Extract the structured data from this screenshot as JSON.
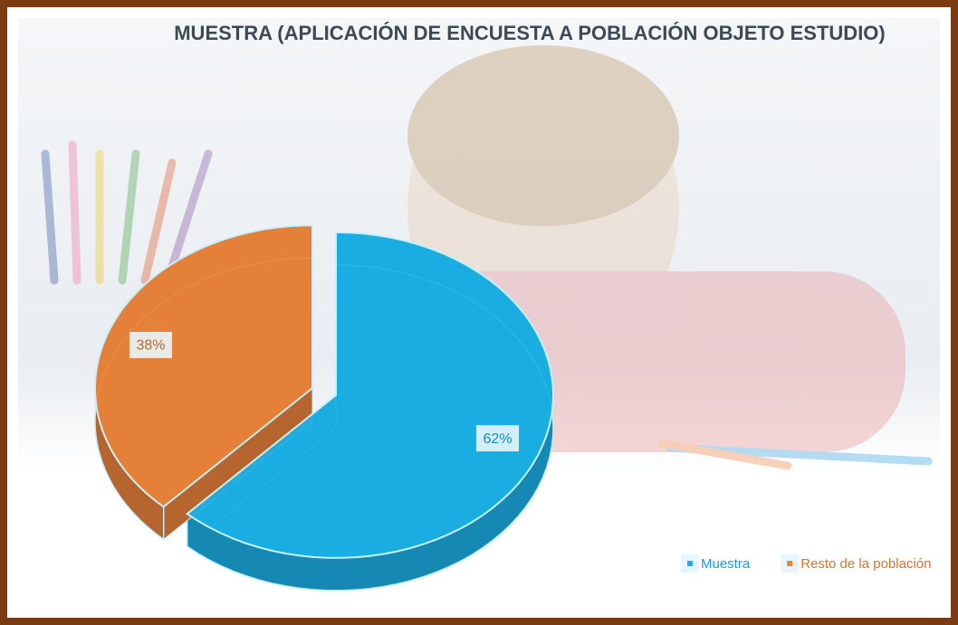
{
  "chart_data": {
    "type": "pie",
    "title": "MUESTRA (APLICACIÓN DE ENCUESTA A POBLACIÓN OBJETO ESTUDIO)",
    "categories": [
      "Muestra",
      "Resto de la población"
    ],
    "values": [
      62,
      38
    ],
    "value_labels": [
      "62%",
      "38%"
    ],
    "colors": [
      "#1bb0e6",
      "#e8823a"
    ],
    "legend": "bottom-right"
  }
}
